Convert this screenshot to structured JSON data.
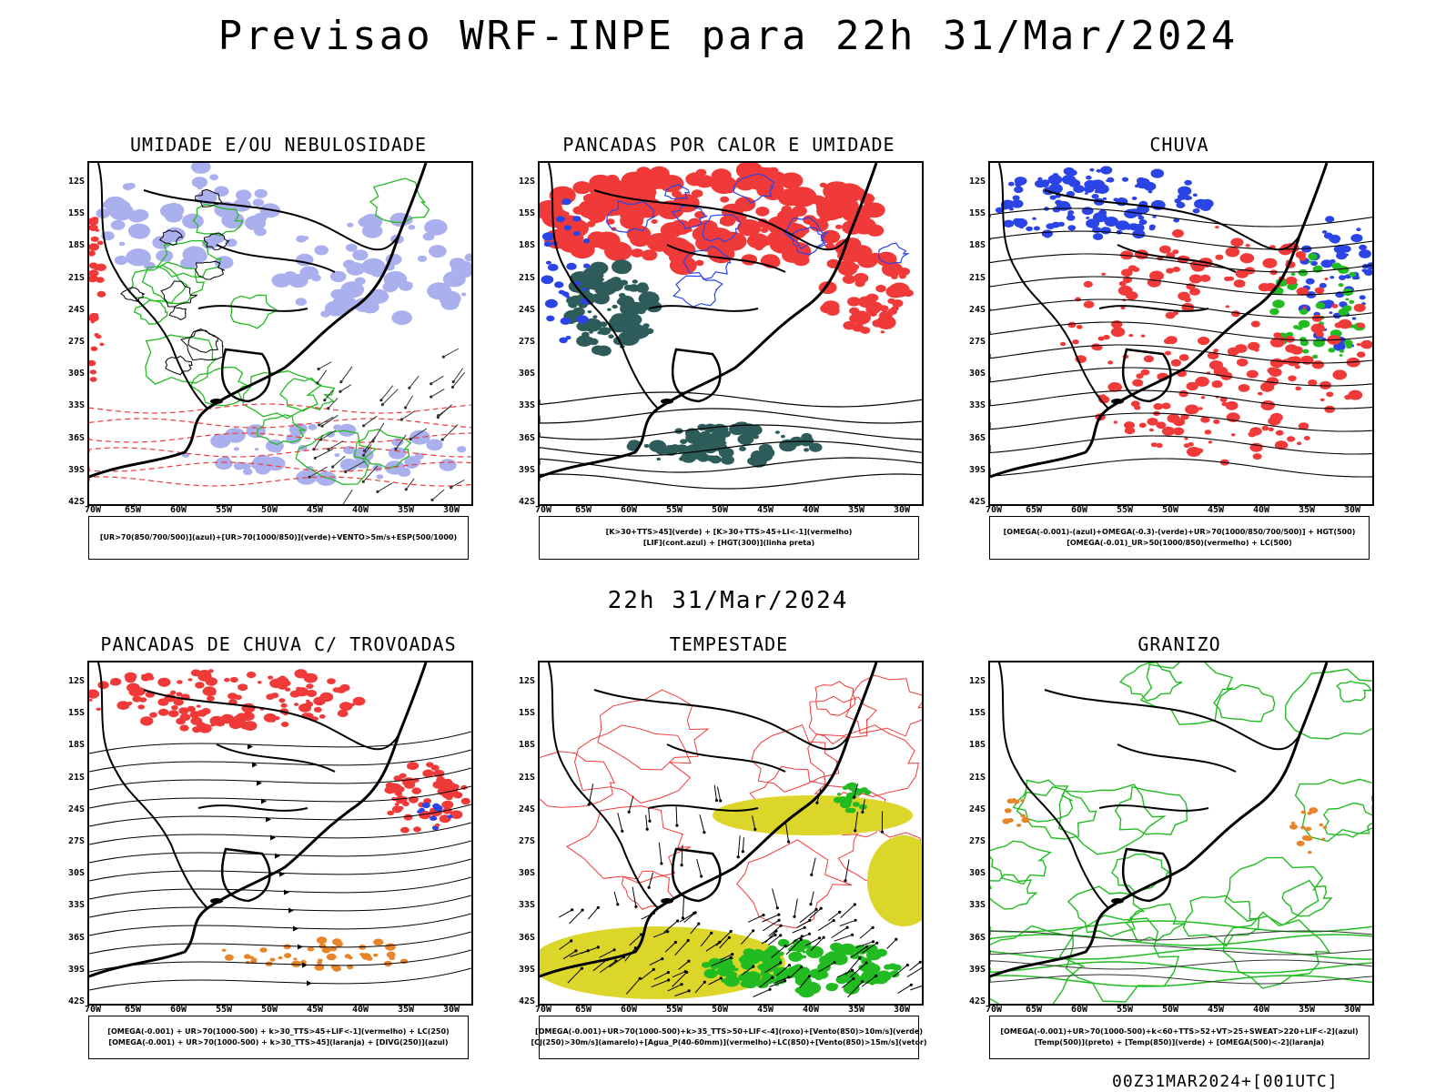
{
  "main_title": "Previsao WRF-INPE  para 22h 31/Mar/2024",
  "mid_title": "22h 31/Mar/2024",
  "footer": "00Z31MAR2024+[001UTC]",
  "axes": {
    "lat_labels": [
      "12S",
      "15S",
      "18S",
      "21S",
      "24S",
      "27S",
      "30S",
      "33S",
      "36S",
      "39S",
      "42S"
    ],
    "lon_labels": [
      "70W",
      "65W",
      "60W",
      "55W",
      "50W",
      "45W",
      "40W",
      "35W",
      "30W"
    ]
  },
  "panels": [
    {
      "title": "UMIDADE E/OU NEBULOSIDADE",
      "legend": [
        "[UR>70(850/700/500)](azul)+[UR>70(1000/850)](verde)+VENTO>5m/s+ESP(500/1000)"
      ]
    },
    {
      "title": "PANCADAS POR CALOR E UMIDADE",
      "legend": [
        "[K>30+TTS>45](verde) + [K>30+TTS>45+LI<-1](vermelho)",
        "[LIF](cont.azul) + [HGT(300)](linha preta)"
      ]
    },
    {
      "title": "CHUVA",
      "legend": [
        "[OMEGA(-0.001)-(azul)+OMEGA(-0.3)-(verde)+UR>70(1000/850/700/500)] + HGT(500)",
        "[OMEGA(-0.01)_UR>50(1000/850)(vermelho) + LC(500)"
      ]
    },
    {
      "title": "PANCADAS DE CHUVA C/ TROVOADAS",
      "legend": [
        "[OMEGA(-0.001) + UR>70(1000-500) + k>30_TTS>45+LIF<-1](vermelho) + LC(250)",
        "[OMEGA(-0.001) + UR>70(1000-500) + k>30_TTS>45](laranja) + [DIVG(250)](azul)"
      ]
    },
    {
      "title": "TEMPESTADE",
      "legend": [
        "[OMEGA(-0.001)+UR>70(1000-500)+k>35_TTS>50+LIF<-4](roxo)+[Vento(850)>10m/s](verde)",
        "[CJ(250)>30m/s](amarelo)+[Agua_P(40-60mm)](vermelho)+LC(850)+[Vento(850)>15m/s](vetor)"
      ]
    },
    {
      "title": "GRANIZO",
      "legend": [
        "[OMEGA(-0.001)+UR>70(1000-500)+k<60+TTS>52+VT>25+SWEAT>220+LIF<-2](azul)",
        "[Temp(500)](preto) + [Temp(850)](verde) + [OMEGA(500)<-2](laranja)"
      ]
    }
  ],
  "colors": {
    "red": "#f03a3a",
    "blue": "#2b44e6",
    "green": "#22bb22",
    "lavender": "#aab0ee",
    "teal": "#2e5c5a",
    "yellow": "#dcd62a",
    "orange": "#e8842a"
  }
}
